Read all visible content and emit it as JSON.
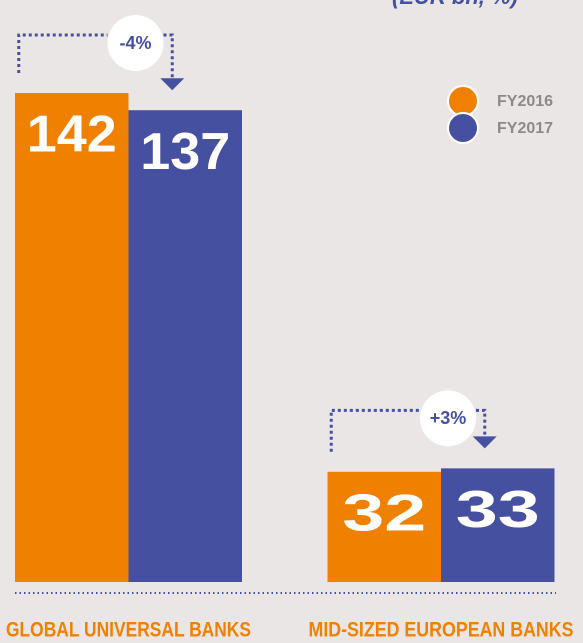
{
  "chart_data": {
    "type": "bar",
    "title": "(EUR bn, %)",
    "categories": [
      "GLOBAL UNIVERSAL BANKS",
      "MID-SIZED EUROPEAN BANKS"
    ],
    "series": [
      {
        "name": "FY2016",
        "color": "#f08100",
        "values": [
          142,
          32
        ]
      },
      {
        "name": "FY2017",
        "color": "#4650a0",
        "values": [
          137,
          33
        ]
      }
    ],
    "annotations": [
      "-4%",
      "+3%"
    ],
    "ylim": [
      0,
      142
    ],
    "legend": "top-right"
  }
}
